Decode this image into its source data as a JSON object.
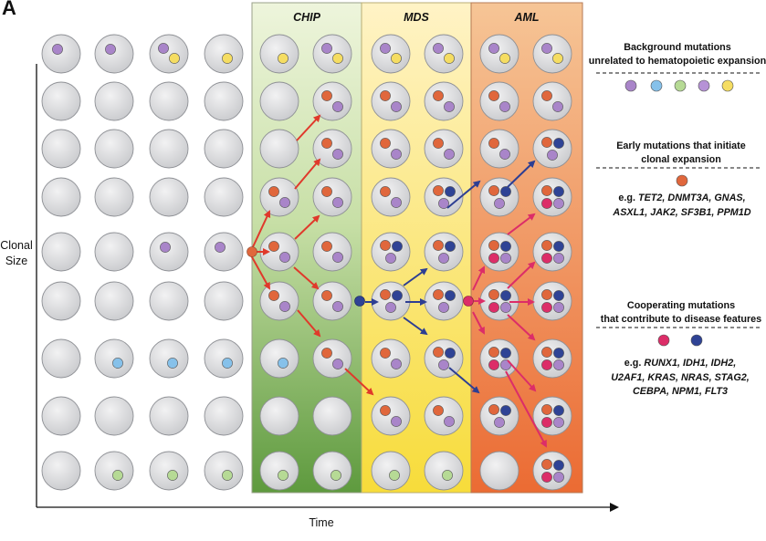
{
  "panel_label": "A",
  "axes": {
    "y_label_line1": "Clonal",
    "y_label_line2": "Size",
    "x_label": "Time"
  },
  "phases": [
    {
      "name": "CHIP",
      "color_top": "#eef5dc",
      "color_bottom": "#5e9a3e"
    },
    {
      "name": "MDS",
      "color_top": "#fff3c6",
      "color_bottom": "#f7dc3a"
    },
    {
      "name": "AML",
      "color_top": "#f6c596",
      "color_bottom": "#eb6b33"
    }
  ],
  "legend": {
    "background": {
      "line1": "Background mutations",
      "line2": "unrelated to hematopoietic expansion",
      "dot_colors": [
        "#a985c9",
        "#86c1ea",
        "#b6da95",
        "#b692d6",
        "#f5dd62"
      ]
    },
    "early": {
      "line1": "Early mutations that initiate",
      "line2": "clonal expansion",
      "dot_color": "#e0673c",
      "example_prefix": "e.g. ",
      "example_line1": "TET2, DNMT3A, GNAS,",
      "example_line2": "ASXL1, JAK2, SF3B1, PPM1D"
    },
    "cooperating": {
      "line1": "Cooperating mutations",
      "line2": "that contribute to disease features",
      "dot_colors": [
        "#dc2d68",
        "#2f4395"
      ],
      "example_prefix": "e.g. ",
      "example_line1": "RUNX1, IDH1, IDH2,",
      "example_line2": "U2AF1, KRAS, NRAS, STAG2,",
      "example_line3": "CEBPA, NPM1, FLT3"
    }
  },
  "colors": {
    "cell_fill": "#d7d8da",
    "cell_stroke": "#8e9095",
    "purple": "#a985c9",
    "yellow": "#f5dd62",
    "blue": "#86c1ea",
    "green": "#b6da95",
    "orange": "#e0673c",
    "pink": "#dc2d68",
    "navy": "#2f4395",
    "red_arrow": "#e0392b",
    "navy_arrow": "#2d3e93",
    "pink_arrow": "#dc2d68"
  },
  "grid": [
    [
      "pu",
      "pu",
      "pu,ye",
      "ye",
      "ye",
      "pu,ye",
      "pu,ye",
      "pu,ye",
      "pu,ye",
      "pu,ye"
    ],
    [
      "",
      "",
      "",
      "",
      "",
      "or,pu",
      "or,pu",
      "or,pu",
      "or,pu",
      "or,pu"
    ],
    [
      "",
      "",
      "",
      "",
      "",
      "or,pu",
      "or,pu",
      "or,pu",
      "or,pu",
      "or,pu,nv"
    ],
    [
      "",
      "",
      "",
      "",
      "or,pu",
      "or,pu",
      "or,pu",
      "or,pu,nv",
      "or,pu,nv",
      "or,pu,nv,pk"
    ],
    [
      "",
      "",
      "pu",
      "pu",
      "or,pu",
      "or,pu",
      "or,pu,nv",
      "or,pu,nv",
      "or,pu,nv,pk",
      "or,pu,nv,pk"
    ],
    [
      "",
      "",
      "",
      "",
      "or,pu",
      "or,pu",
      "or,pu,nv",
      "or,pu,nv",
      "or,pu,nv,pk",
      "or,pu,nv,pk"
    ],
    [
      "",
      "bl",
      "bl",
      "bl",
      "bl",
      "or,pu",
      "or,pu",
      "or,pu,nv",
      "or,pu,nv,pk",
      "or,pu,nv,pk"
    ],
    [
      "",
      "",
      "",
      "",
      "",
      "",
      "or,pu",
      "or,pu",
      "or,pu,nv",
      "or,pu,nv,pk"
    ],
    [
      "",
      "gr",
      "gr",
      "gr",
      "gr",
      "gr",
      "gr",
      "gr",
      "",
      "or,pu,nv,pk"
    ]
  ]
}
